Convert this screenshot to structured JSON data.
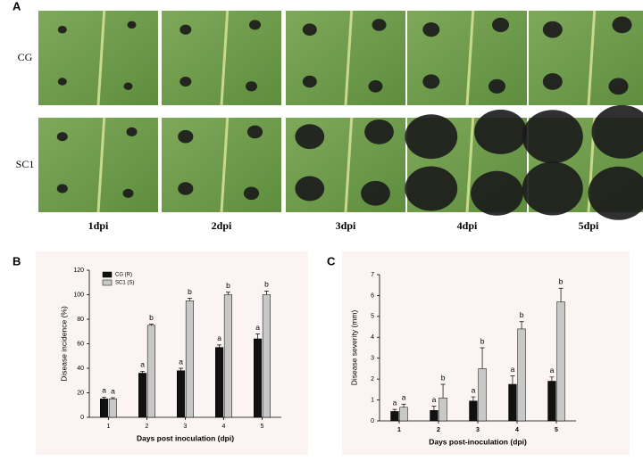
{
  "panel_a": {
    "label": "A",
    "rows": [
      "CG",
      "SC1"
    ],
    "columns": [
      "1dpi",
      "2dpi",
      "3dpi",
      "4dpi",
      "5dpi"
    ]
  },
  "chart_data": [
    {
      "type": "bar",
      "panel": "B",
      "y_label": "Disease incidence (%)",
      "x_label": "Days post inoculation (dpi)",
      "categories": [
        "1",
        "2",
        "3",
        "4",
        "5"
      ],
      "series": [
        {
          "name": "CG (R)",
          "color": "#111111",
          "values": [
            15,
            36,
            38,
            57,
            64
          ],
          "errors": [
            1.5,
            1.5,
            2,
            2,
            4
          ],
          "letters": [
            "a",
            "a",
            "a",
            "a",
            "a"
          ]
        },
        {
          "name": "SC1 (S)",
          "color": "#c8c8c8",
          "values": [
            15,
            75,
            95,
            100,
            100
          ],
          "errors": [
            1,
            1,
            2,
            2,
            3
          ],
          "letters": [
            "a",
            "b",
            "b",
            "b",
            "b"
          ]
        }
      ],
      "ylim": [
        0,
        120
      ],
      "yticks": [
        0,
        20,
        40,
        60,
        80,
        100,
        120
      ],
      "legend": "top-left"
    },
    {
      "type": "bar",
      "panel": "C",
      "y_label": "Disease severity (mm)",
      "x_label": "Days post-inoculation (dpi)",
      "categories": [
        "1",
        "2",
        "3",
        "4",
        "5"
      ],
      "series": [
        {
          "color": "#111111",
          "values": [
            0.45,
            0.5,
            0.95,
            1.75,
            1.9
          ],
          "errors": [
            0.1,
            0.2,
            0.2,
            0.4,
            0.2
          ],
          "letters": [
            "a",
            "a",
            "a",
            "a",
            "a"
          ]
        },
        {
          "color": "#c8c8c8",
          "values": [
            0.65,
            1.1,
            2.5,
            4.4,
            5.7
          ],
          "errors": [
            0.15,
            0.65,
            1.0,
            0.35,
            0.65
          ],
          "letters": [
            "a",
            "b",
            "b",
            "b",
            "b"
          ]
        }
      ],
      "ylim": [
        0,
        7
      ],
      "yticks": [
        0,
        1,
        2,
        3,
        4,
        5,
        6,
        7
      ]
    }
  ]
}
